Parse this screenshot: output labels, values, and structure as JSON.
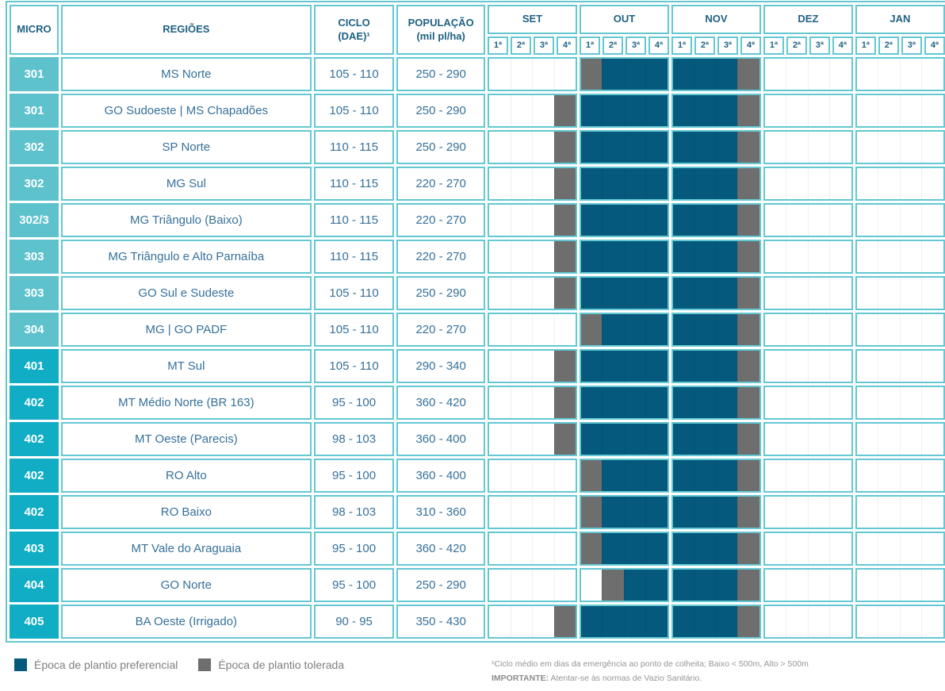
{
  "chart_data": {
    "type": "table",
    "description_visible": false,
    "headers": {
      "micro": "MICRO",
      "regioes": "REGIÕES",
      "ciclo": "CICLO\n(DAE)¹",
      "populacao": "POPULAÇÃO\n(mil pl/ha)"
    },
    "months": [
      "SET",
      "OUT",
      "NOV",
      "DEZ",
      "JAN"
    ],
    "weeks": [
      "1ª",
      "2ª",
      "3ª",
      "4ª"
    ],
    "week_states_encoding_order": "SET1..SET4,OUT1..OUT4,NOV1..NOV4,DEZ1..DEZ4,JAN1..JAN4",
    "rows": [
      {
        "micro": "301",
        "series": "300",
        "regiao": "MS Norte",
        "ciclo": "105 - 110",
        "populacao": "250 - 290",
        "weeks": "....tppppppt........"
      },
      {
        "micro": "301",
        "series": "300",
        "regiao": "GO Sudoeste | MS Chapadões",
        "ciclo": "105 - 110",
        "populacao": "250 - 290",
        "weeks": "...tpppppppt........"
      },
      {
        "micro": "302",
        "series": "300",
        "regiao": "SP Norte",
        "ciclo": "110 - 115",
        "populacao": "250 - 290",
        "weeks": "...tpppppppt........"
      },
      {
        "micro": "302",
        "series": "300",
        "regiao": "MG Sul",
        "ciclo": "110 - 115",
        "populacao": "220 - 270",
        "weeks": "...tpppppppt........"
      },
      {
        "micro": "302/3",
        "series": "300",
        "regiao": "MG Triângulo (Baixo)",
        "ciclo": "110 - 115",
        "populacao": "220 - 270",
        "weeks": "...tpppppppt........"
      },
      {
        "micro": "303",
        "series": "300",
        "regiao": "MG Triângulo e Alto Parnaíba",
        "ciclo": "110 - 115",
        "populacao": "220 - 270",
        "weeks": "...tpppppppt........"
      },
      {
        "micro": "303",
        "series": "300",
        "regiao": "GO Sul e Sudeste",
        "ciclo": "105 - 110",
        "populacao": "250 - 290",
        "weeks": "...tpppppppt........"
      },
      {
        "micro": "304",
        "series": "300",
        "regiao": "MG | GO PADF",
        "ciclo": "105 - 110",
        "populacao": "220 - 270",
        "weeks": "....tppppppt........"
      },
      {
        "micro": "401",
        "series": "400",
        "regiao": "MT Sul",
        "ciclo": "105 - 110",
        "populacao": "290 - 340",
        "weeks": "...tpppppppt........"
      },
      {
        "micro": "402",
        "series": "400",
        "regiao": "MT Médio Norte (BR 163)",
        "ciclo": "95 - 100",
        "populacao": "360 - 420",
        "weeks": "...tpppppppt........"
      },
      {
        "micro": "402",
        "series": "400",
        "regiao": "MT Oeste (Parecis)",
        "ciclo": "98 - 103",
        "populacao": "360 - 400",
        "weeks": "...tpppppppt........"
      },
      {
        "micro": "402",
        "series": "400",
        "regiao": "RO Alto",
        "ciclo": "95 - 100",
        "populacao": "360 - 400",
        "weeks": "....tppppppt........"
      },
      {
        "micro": "402",
        "series": "400",
        "regiao": "RO Baixo",
        "ciclo": "98 - 103",
        "populacao": "310 - 360",
        "weeks": "....tppppppt........"
      },
      {
        "micro": "403",
        "series": "400",
        "regiao": "MT Vale do Araguaia",
        "ciclo": "95 - 100",
        "populacao": "360 - 420",
        "weeks": "....tppppppt........"
      },
      {
        "micro": "404",
        "series": "400",
        "regiao": "GO Norte",
        "ciclo": "95 - 100",
        "populacao": "250 - 290",
        "weeks": ".....tpppppt........"
      },
      {
        "micro": "405",
        "series": "400",
        "regiao": "BA Oeste (Irrigado)",
        "ciclo": "90 - 95",
        "populacao": "350 - 430",
        "weeks": "...tpppppppt........"
      }
    ]
  },
  "legend": {
    "preferencial": "Época de plantio preferencial",
    "tolerada": "Época de plantio tolerada"
  },
  "footnotes": {
    "ciclo": "¹Ciclo médio em dias da emergência ao ponto de colheita; Baixo < 500m, Alto > 500m",
    "importante_label": "IMPORTANTE:",
    "importante_text": " Atentar-se às normas de Vazio Sanitário."
  },
  "colors": {
    "preferencial": "#05597c",
    "tolerada": "#6e6e6e",
    "micro_300": "#5ec2cd",
    "micro_400": "#10adc5",
    "border_teal": "#63c8d2",
    "header_text": "#1e6182",
    "value_text": "#35709a"
  }
}
